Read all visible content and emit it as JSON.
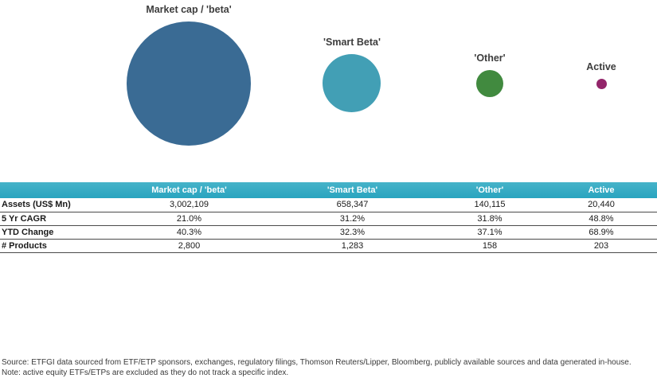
{
  "chart_data": [
    {
      "type": "bubble",
      "title": "",
      "categories": [
        "Market cap / 'beta'",
        "'Smart Beta'",
        "'Other'",
        "Active"
      ],
      "values": [
        3002109,
        658347,
        140115,
        20440
      ],
      "value_label": "Assets (US$ Mn)",
      "colors": [
        "#3a6b94",
        "#429fb5",
        "#418a3f",
        "#93256a"
      ],
      "layout": "four bubbles in a horizontal row, area proportional to assets, category label above each bubble, legend off, axes off"
    },
    {
      "type": "table",
      "header_bg": "#2fa9c3",
      "header_text_color": "#ffffff",
      "columns": [
        "Market cap / 'beta'",
        "'Smart Beta'",
        "'Other'",
        "Active"
      ],
      "rows": [
        {
          "label": "Assets (US$ Mn)",
          "values": [
            "3,002,109",
            "658,347",
            "140,115",
            "20,440"
          ]
        },
        {
          "label": "5 Yr CAGR",
          "values": [
            "21.0%",
            "31.2%",
            "31.8%",
            "48.8%"
          ]
        },
        {
          "label": "YTD Change",
          "values": [
            "40.3%",
            "32.3%",
            "37.1%",
            "68.9%"
          ]
        },
        {
          "label": "# Products",
          "values": [
            "2,800",
            "1,283",
            "158",
            "203"
          ]
        }
      ]
    }
  ],
  "footer": {
    "source": "Source: ETFGI data sourced from ETF/ETP sponsors, exchanges, regulatory filings, Thomson Reuters/Lipper, Bloomberg, publicly available sources and data generated in-house.",
    "note": "Note: active equity ETFs/ETPs are excluded as they do not track a specific index."
  }
}
